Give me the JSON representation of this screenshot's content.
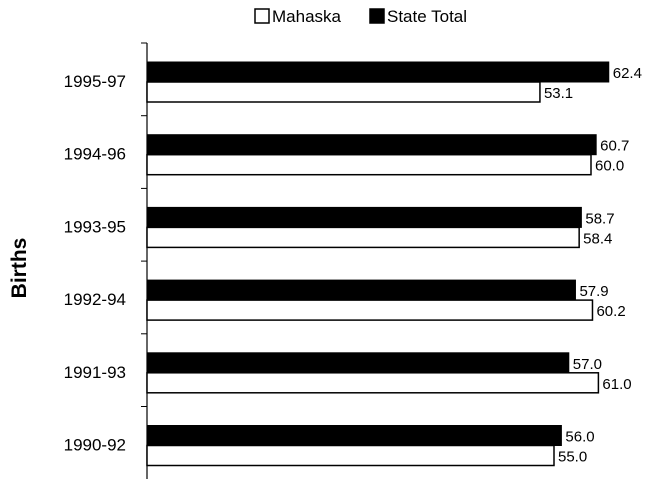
{
  "chart_data": {
    "type": "bar",
    "orientation": "horizontal",
    "title": "",
    "xlabel": "",
    "ylabel": "Births",
    "categories": [
      "1995-97",
      "1994-96",
      "1993-95",
      "1992-94",
      "1991-93",
      "1990-92"
    ],
    "series": [
      {
        "name": "State Total",
        "color": "#000000",
        "values": [
          62.4,
          60.7,
          58.7,
          57.9,
          57.0,
          56.0
        ],
        "labels": [
          "62.4",
          "60.7",
          "58.7",
          "57.9",
          "57.0",
          "56.0"
        ]
      },
      {
        "name": "Mahaska",
        "color": "#ffffff",
        "values": [
          53.1,
          60.0,
          58.4,
          60.2,
          61.0,
          55.0
        ],
        "labels": [
          "53.1",
          "60.0",
          "58.4",
          "60.2",
          "61.0",
          "55.0"
        ]
      }
    ],
    "legend": {
      "placement": "top",
      "items": [
        {
          "name": "Mahaska",
          "fill": "#ffffff"
        },
        {
          "name": "State Total",
          "fill": "#000000"
        }
      ]
    },
    "xlim": [
      0,
      65
    ],
    "grid": false
  }
}
